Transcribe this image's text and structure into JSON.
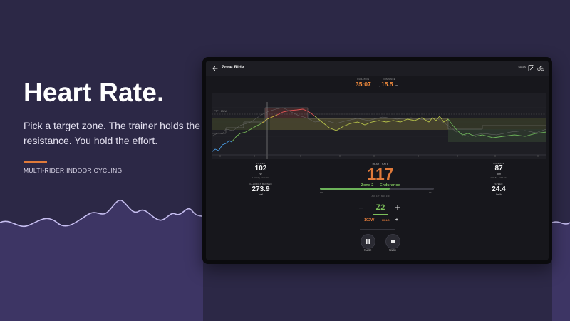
{
  "hero": {
    "title": "Heart Rate.",
    "subtitle": "Pick a target zone. The trainer holds the resistance. You hold the effort.",
    "tag": "MULTI-RIDER INDOOR CYCLING"
  },
  "app": {
    "title": "Zone Ride",
    "finish_label": "finish",
    "icons": {
      "back": "back-arrow-icon",
      "flag": "flag-icon",
      "bike": "bike-icon"
    }
  },
  "top_stats": {
    "duration": {
      "label": "DURATION",
      "value": "35:07"
    },
    "distance": {
      "label": "DISTANCE",
      "value": "15.5",
      "unit": "km"
    }
  },
  "chart": {
    "ftp_label": "FTP · 130W"
  },
  "metrics": {
    "power": {
      "label": "POWER",
      "value": "102",
      "unit": "W",
      "sub": "1.4 W/kg · AVG 101"
    },
    "calories": {
      "label": "CALORIES BURNED",
      "value": "273.9",
      "unit": "kcal"
    },
    "cadence": {
      "label": "CADENCE",
      "value": "87",
      "unit": "rpm",
      "sub": "AVG 84 · MAX 101"
    },
    "speed": {
      "label": "SPEED",
      "value": "24.4",
      "unit": "km/h"
    }
  },
  "heart_rate": {
    "label": "HEART RATE",
    "value": "117",
    "zone_name": "Zone 2 — Endurance",
    "zone_low": "106",
    "zone_high": "124",
    "zone_position": 0.61,
    "avg_max": "AVG 117 · MAX 139"
  },
  "controls": {
    "zone_minus": "−",
    "zone_plus": "+",
    "zone": "Z2",
    "watts_minus": "−",
    "watts_plus": "+",
    "watts": "102W",
    "hold": "HOLD"
  },
  "buttons": {
    "pause": "PAUSE",
    "finish": "FINISH"
  },
  "colors": {
    "background": "#2c2846",
    "accent": "#e07a3a",
    "zone_green": "#7cbf5a",
    "hr_red": "#e05555",
    "hr_blue": "#4a9ee8"
  }
}
